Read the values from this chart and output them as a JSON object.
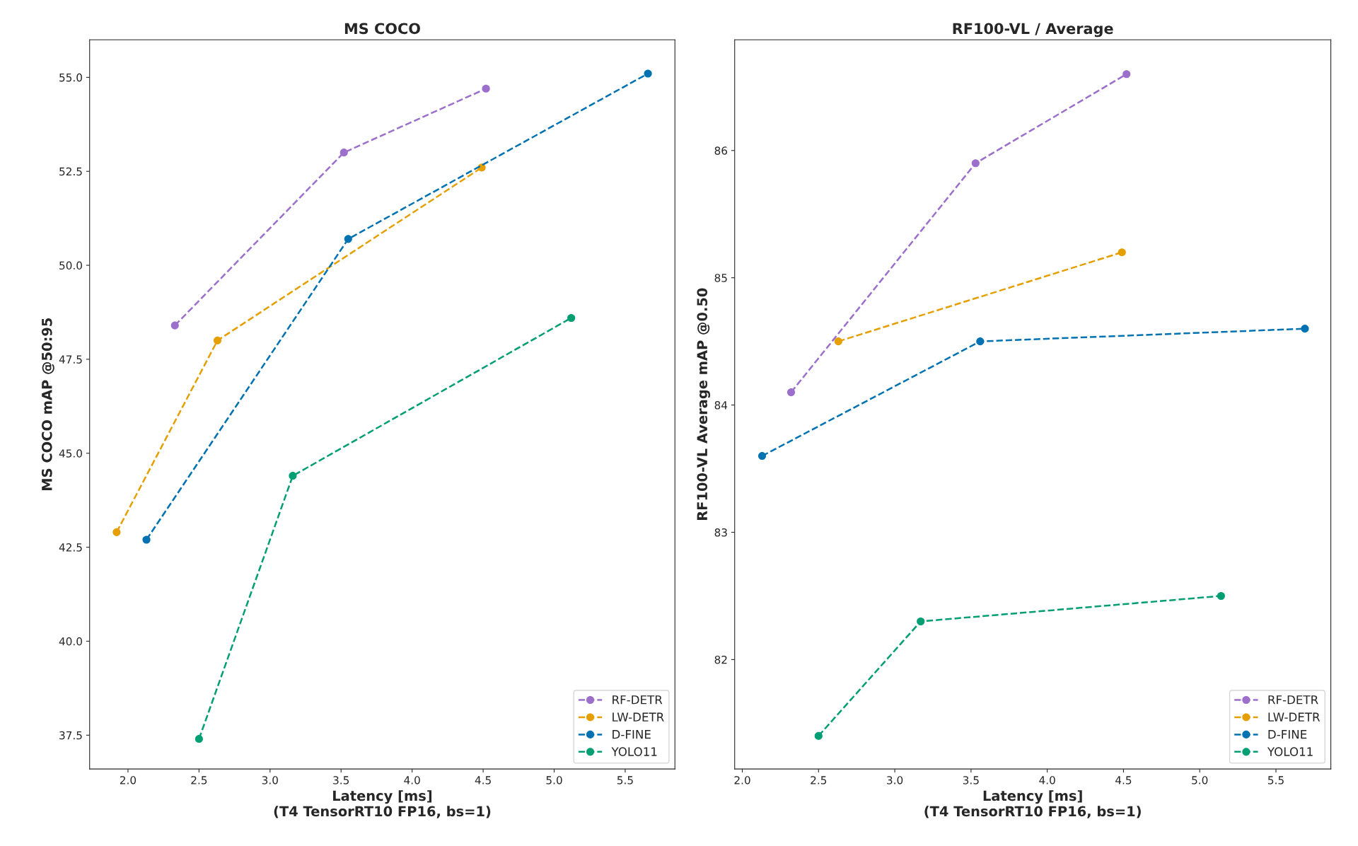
{
  "chart_data": [
    {
      "type": "line",
      "title": "MS COCO",
      "xlabel": "Latency [ms]\n(T4 TensorRT10 FP16, bs=1)",
      "ylabel": "MS COCO mAP @50:95",
      "xlim": [
        1.73,
        5.85
      ],
      "ylim": [
        36.6,
        56.0
      ],
      "xticks": [
        {
          "value": 2,
          "label": "2.0"
        },
        2.5,
        {
          "value": 3,
          "label": "3.0"
        },
        3.5,
        {
          "value": 4,
          "label": "4.0"
        },
        4.5,
        {
          "value": 5,
          "label": "5.0"
        },
        5.5
      ],
      "yticks": [
        37.5,
        {
          "value": 40,
          "label": "40.0"
        },
        42.5,
        {
          "value": 45,
          "label": "45.0"
        },
        47.5,
        {
          "value": 50,
          "label": "50.0"
        },
        52.5,
        {
          "value": 55,
          "label": "55.0"
        }
      ],
      "legend": "bottom right",
      "marker": "circle",
      "line_style": "dashed",
      "grid": false,
      "series": [
        {
          "name": "RF-DETR",
          "color": "#9b6fcb",
          "x": [
            2.33,
            3.52,
            4.52
          ],
          "values": [
            48.4,
            53.0,
            54.7
          ]
        },
        {
          "name": "LW-DETR",
          "color": "#e69f00",
          "x": [
            1.92,
            2.63,
            4.49
          ],
          "values": [
            42.9,
            48.0,
            52.6
          ]
        },
        {
          "name": "D-FINE",
          "color": "#0072b2",
          "x": [
            2.13,
            3.55,
            5.66
          ],
          "values": [
            42.7,
            50.7,
            55.1
          ]
        },
        {
          "name": "YOLO11",
          "color": "#009e73",
          "x": [
            2.5,
            3.16,
            5.12
          ],
          "values": [
            37.4,
            44.4,
            48.6
          ]
        }
      ]
    },
    {
      "type": "line",
      "title": "RF100-VL / Average",
      "xlabel": "Latency [ms]\n(T4 TensorRT10 FP16, bs=1)",
      "ylabel": "RF100-VL Average mAP @0.50",
      "xlim": [
        1.95,
        5.86
      ],
      "ylim": [
        81.14,
        86.87
      ],
      "xticks": [
        {
          "value": 2,
          "label": "2.0"
        },
        2.5,
        {
          "value": 3,
          "label": "3.0"
        },
        3.5,
        {
          "value": 4,
          "label": "4.0"
        },
        4.5,
        {
          "value": 5,
          "label": "5.0"
        },
        5.5
      ],
      "yticks": [
        82,
        83,
        84,
        85,
        86
      ],
      "legend": "bottom right",
      "marker": "circle",
      "line_style": "dashed",
      "grid": false,
      "series": [
        {
          "name": "RF-DETR",
          "color": "#9b6fcb",
          "x": [
            2.32,
            3.53,
            4.52
          ],
          "values": [
            84.1,
            85.9,
            86.6
          ]
        },
        {
          "name": "LW-DETR",
          "color": "#e69f00",
          "x": [
            2.63,
            4.49
          ],
          "values": [
            84.5,
            85.2
          ]
        },
        {
          "name": "D-FINE",
          "color": "#0072b2",
          "x": [
            2.13,
            3.56,
            5.69
          ],
          "values": [
            83.6,
            84.5,
            84.6
          ]
        },
        {
          "name": "YOLO11",
          "color": "#009e73",
          "x": [
            2.5,
            3.17,
            5.14
          ],
          "values": [
            81.4,
            82.3,
            82.5
          ]
        }
      ]
    }
  ]
}
